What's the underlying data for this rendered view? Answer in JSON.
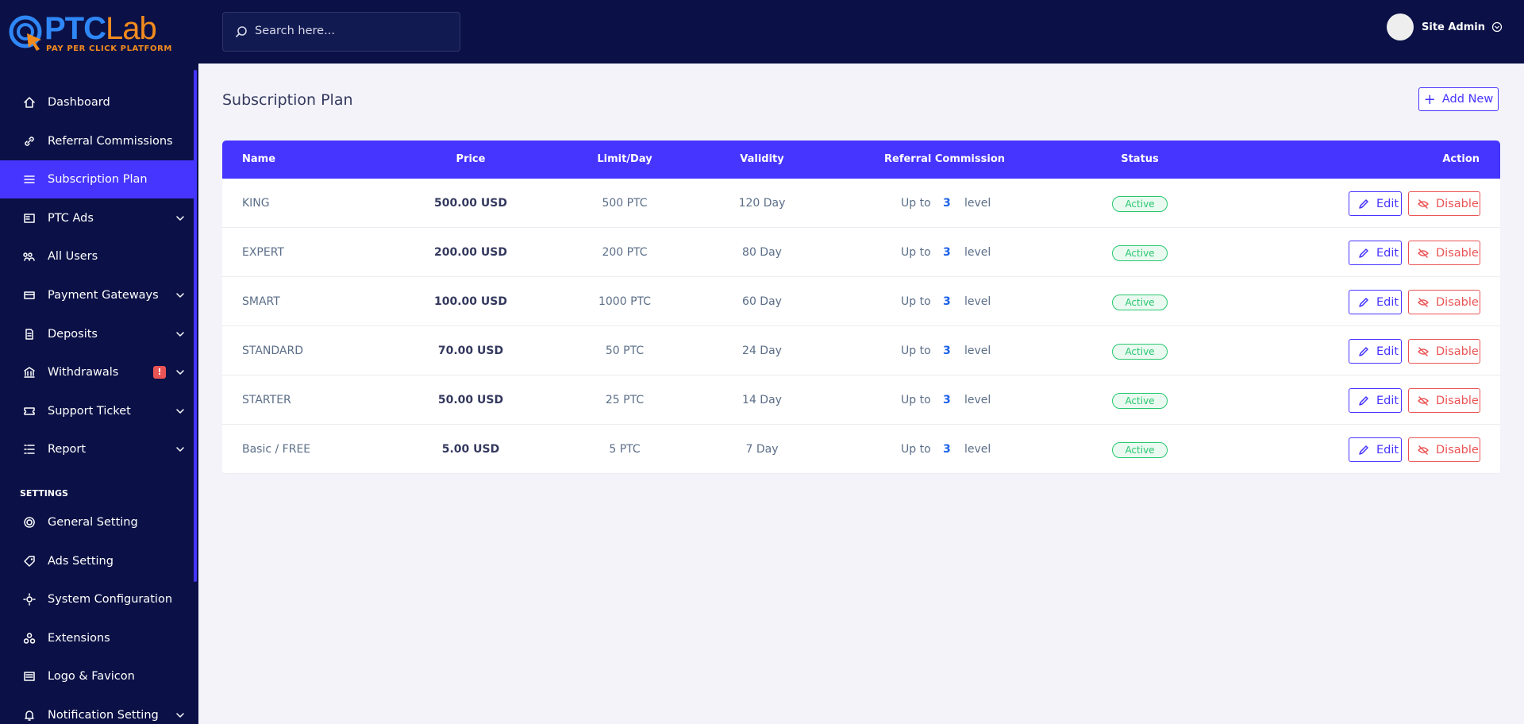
{
  "logo": {
    "brand": "PTC",
    "brand_suffix": "Lab",
    "tagline": "PAY PER CLICK PLATFORM"
  },
  "search": {
    "placeholder": "Search here..."
  },
  "user": {
    "name": "Site Admin"
  },
  "sidebar": {
    "items": [
      {
        "label": "Dashboard"
      },
      {
        "label": "Referral Commissions"
      },
      {
        "label": "Subscription Plan"
      },
      {
        "label": "PTC Ads"
      },
      {
        "label": "All Users"
      },
      {
        "label": "Payment Gateways"
      },
      {
        "label": "Deposits"
      },
      {
        "label": "Withdrawals",
        "badge": "!"
      },
      {
        "label": "Support Ticket"
      },
      {
        "label": "Report"
      }
    ],
    "settings_heading": "SETTINGS",
    "settings_items": [
      {
        "label": "General Setting"
      },
      {
        "label": "Ads Setting"
      },
      {
        "label": "System Configuration"
      },
      {
        "label": "Extensions"
      },
      {
        "label": "Logo & Favicon"
      },
      {
        "label": "Notification Setting"
      }
    ]
  },
  "page": {
    "title": "Subscription Plan",
    "add_button": "Add New"
  },
  "table": {
    "columns": [
      "Name",
      "Price",
      "Limit/Day",
      "Validity",
      "Referral Commission",
      "Status",
      "Action"
    ],
    "rows": [
      {
        "name": "KING",
        "price": "500.00 USD",
        "limit": "500 PTC",
        "validity": "120 Day",
        "ref_prefix": "Up to",
        "ref_level": "3",
        "ref_suffix": "level",
        "status": "Active",
        "edit": "Edit",
        "disable": "Disable"
      },
      {
        "name": "EXPERT",
        "price": "200.00 USD",
        "limit": "200 PTC",
        "validity": "80 Day",
        "ref_prefix": "Up to",
        "ref_level": "3",
        "ref_suffix": "level",
        "status": "Active",
        "edit": "Edit",
        "disable": "Disable"
      },
      {
        "name": "SMART",
        "price": "100.00 USD",
        "limit": "1000 PTC",
        "validity": "60 Day",
        "ref_prefix": "Up to",
        "ref_level": "3",
        "ref_suffix": "level",
        "status": "Active",
        "edit": "Edit",
        "disable": "Disable"
      },
      {
        "name": "STANDARD",
        "price": "70.00 USD",
        "limit": "50 PTC",
        "validity": "24 Day",
        "ref_prefix": "Up to",
        "ref_level": "3",
        "ref_suffix": "level",
        "status": "Active",
        "edit": "Edit",
        "disable": "Disable"
      },
      {
        "name": "STARTER",
        "price": "50.00 USD",
        "limit": "25 PTC",
        "validity": "14 Day",
        "ref_prefix": "Up to",
        "ref_level": "3",
        "ref_suffix": "level",
        "status": "Active",
        "edit": "Edit",
        "disable": "Disable"
      },
      {
        "name": "Basic / FREE",
        "price": "5.00 USD",
        "limit": "5 PTC",
        "validity": "7 Day",
        "ref_prefix": "Up to",
        "ref_level": "3",
        "ref_suffix": "level",
        "status": "Active",
        "edit": "Edit",
        "disable": "Disable"
      }
    ]
  }
}
